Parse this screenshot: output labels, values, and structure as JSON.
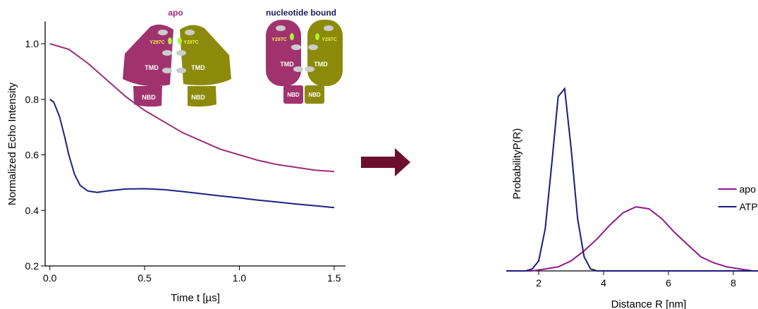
{
  "schematic": {
    "left_title": "apo",
    "right_title": "nucleotide bound",
    "tmd": "TMD",
    "nbd": "NBD",
    "mutation": "Y297C"
  },
  "chart_data": [
    {
      "type": "line",
      "x_label": "Time t [µs]",
      "y_label": "Normalized Echo Intensity",
      "xlim": [
        -0.025,
        1.56
      ],
      "ylim": [
        0.2,
        1.08
      ],
      "xticks": [
        {
          "value": 0,
          "label": "0.0"
        },
        0.5,
        {
          "value": 1,
          "label": "1.0"
        },
        1.5
      ],
      "yticks": [
        0.2,
        0.4,
        0.6,
        0.8,
        {
          "value": 1,
          "label": "1.0"
        }
      ],
      "series": [
        {
          "color": "#9b2d7a",
          "x": [
            0,
            0.1,
            0.2,
            0.3,
            0.4,
            0.5,
            0.6,
            0.7,
            0.8,
            0.9,
            1.0,
            1.1,
            1.2,
            1.3,
            1.4,
            1.5
          ],
          "values": [
            1.0,
            0.98,
            0.93,
            0.87,
            0.81,
            0.76,
            0.72,
            0.68,
            0.65,
            0.62,
            0.6,
            0.58,
            0.565,
            0.555,
            0.545,
            0.54
          ]
        },
        {
          "color": "#1a237e",
          "x": [
            0,
            0.02,
            0.05,
            0.08,
            0.1,
            0.13,
            0.16,
            0.2,
            0.25,
            0.3,
            0.4,
            0.5,
            0.6,
            0.7,
            0.8,
            0.9,
            1.0,
            1.1,
            1.2,
            1.3,
            1.4,
            1.5
          ],
          "values": [
            0.8,
            0.79,
            0.74,
            0.66,
            0.6,
            0.53,
            0.49,
            0.47,
            0.465,
            0.47,
            0.477,
            0.478,
            0.475,
            0.468,
            0.46,
            0.452,
            0.445,
            0.437,
            0.43,
            0.423,
            0.417,
            0.41
          ]
        }
      ]
    },
    {
      "type": "line",
      "x_label": "Distance R [nm]",
      "y_label": "ProbabilityP(R)",
      "legend": "right",
      "xlim": [
        1,
        8.75
      ],
      "ylim": [
        0,
        1
      ],
      "xticks": [
        2,
        4,
        6,
        8
      ],
      "series": [
        {
          "name": "apo",
          "color": "#8b1a8b",
          "x": [
            1,
            1.4,
            1.8,
            2.2,
            2.6,
            3,
            3.4,
            3.8,
            4.2,
            4.6,
            5,
            5.4,
            5.8,
            6.2,
            6.6,
            7,
            7.4,
            7.8,
            8.2,
            8.6,
            9
          ],
          "values": [
            0,
            0,
            0,
            0.01,
            0.02,
            0.05,
            0.1,
            0.16,
            0.23,
            0.29,
            0.32,
            0.31,
            0.26,
            0.19,
            0.13,
            0.07,
            0.04,
            0.02,
            0.01,
            0,
            0
          ]
        },
        {
          "name": "ATP",
          "color": "#1a1a7a",
          "x": [
            1,
            1.6,
            1.8,
            2,
            2.2,
            2.4,
            2.6,
            2.8,
            3,
            3.2,
            3.4,
            3.6,
            3.8,
            4.4,
            5,
            6,
            7,
            8,
            9
          ],
          "values": [
            0,
            0,
            0.01,
            0.05,
            0.21,
            0.53,
            0.87,
            0.91,
            0.61,
            0.26,
            0.07,
            0.01,
            0,
            0,
            0,
            0,
            0,
            0,
            0
          ]
        }
      ]
    }
  ]
}
